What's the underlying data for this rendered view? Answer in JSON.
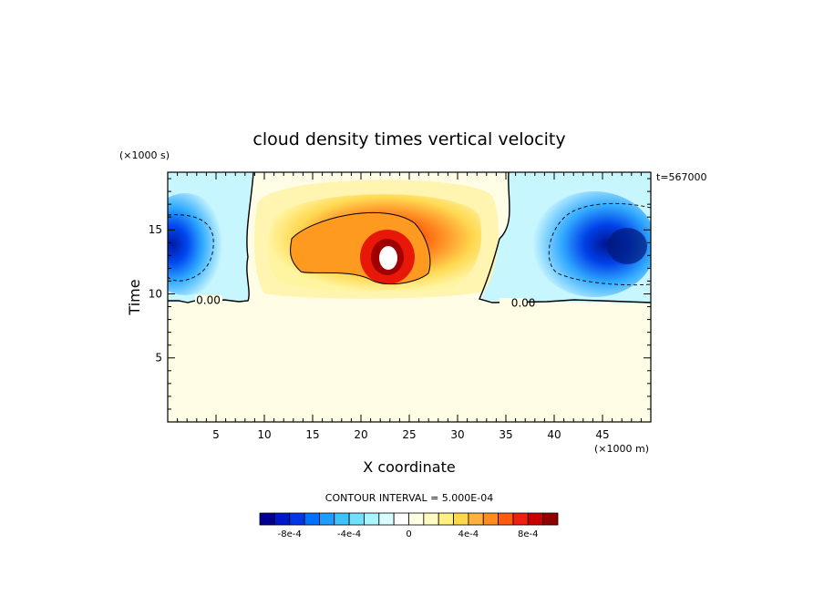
{
  "chart_data": {
    "type": "heatmap",
    "title": "cloud density times vertical velocity",
    "xlabel": "X coordinate",
    "ylabel": "Time",
    "x_unit": "(×1000 m)",
    "y_unit": "(×1000 s)",
    "time_stamp": "t=567000",
    "xlim": [
      0,
      50
    ],
    "ylim": [
      0,
      19.5
    ],
    "x_ticks": [
      5,
      10,
      15,
      20,
      25,
      30,
      35,
      40,
      45
    ],
    "y_ticks": [
      5,
      10,
      15
    ],
    "grid": false,
    "contour_interval_label": "CONTOUR INTERVAL = 5.000E-04",
    "contour_labels": [
      {
        "text": "0.00",
        "x": 4.2,
        "y": 9.5
      },
      {
        "text": "0.00",
        "x": 36.8,
        "y": 9.3
      }
    ],
    "value_range": [
      -0.001,
      0.001
    ],
    "features": [
      {
        "kind": "updraft_core",
        "x_center": 22.5,
        "y_center": 13.3,
        "peak": 0.001
      },
      {
        "kind": "downdraft_left",
        "x_center": 1.5,
        "y_center": 13.5,
        "peak": -0.0009
      },
      {
        "kind": "downdraft_right",
        "x_center": 46.5,
        "y_center": 13.8,
        "peak": -0.001
      }
    ],
    "colorbar": {
      "colors": [
        "#00008f",
        "#0018c8",
        "#0038e8",
        "#0070ff",
        "#209cff",
        "#40c0ff",
        "#70e0ff",
        "#a8f4ff",
        "#d8fcff",
        "#ffffff",
        "#ffffe4",
        "#fffac0",
        "#fff080",
        "#ffd850",
        "#ffb040",
        "#ff8c20",
        "#ff5a10",
        "#f02010",
        "#c80000",
        "#900000"
      ],
      "tick_labels": [
        "-8e-4",
        "-4e-4",
        "0",
        "4e-4",
        "8e-4"
      ]
    }
  }
}
